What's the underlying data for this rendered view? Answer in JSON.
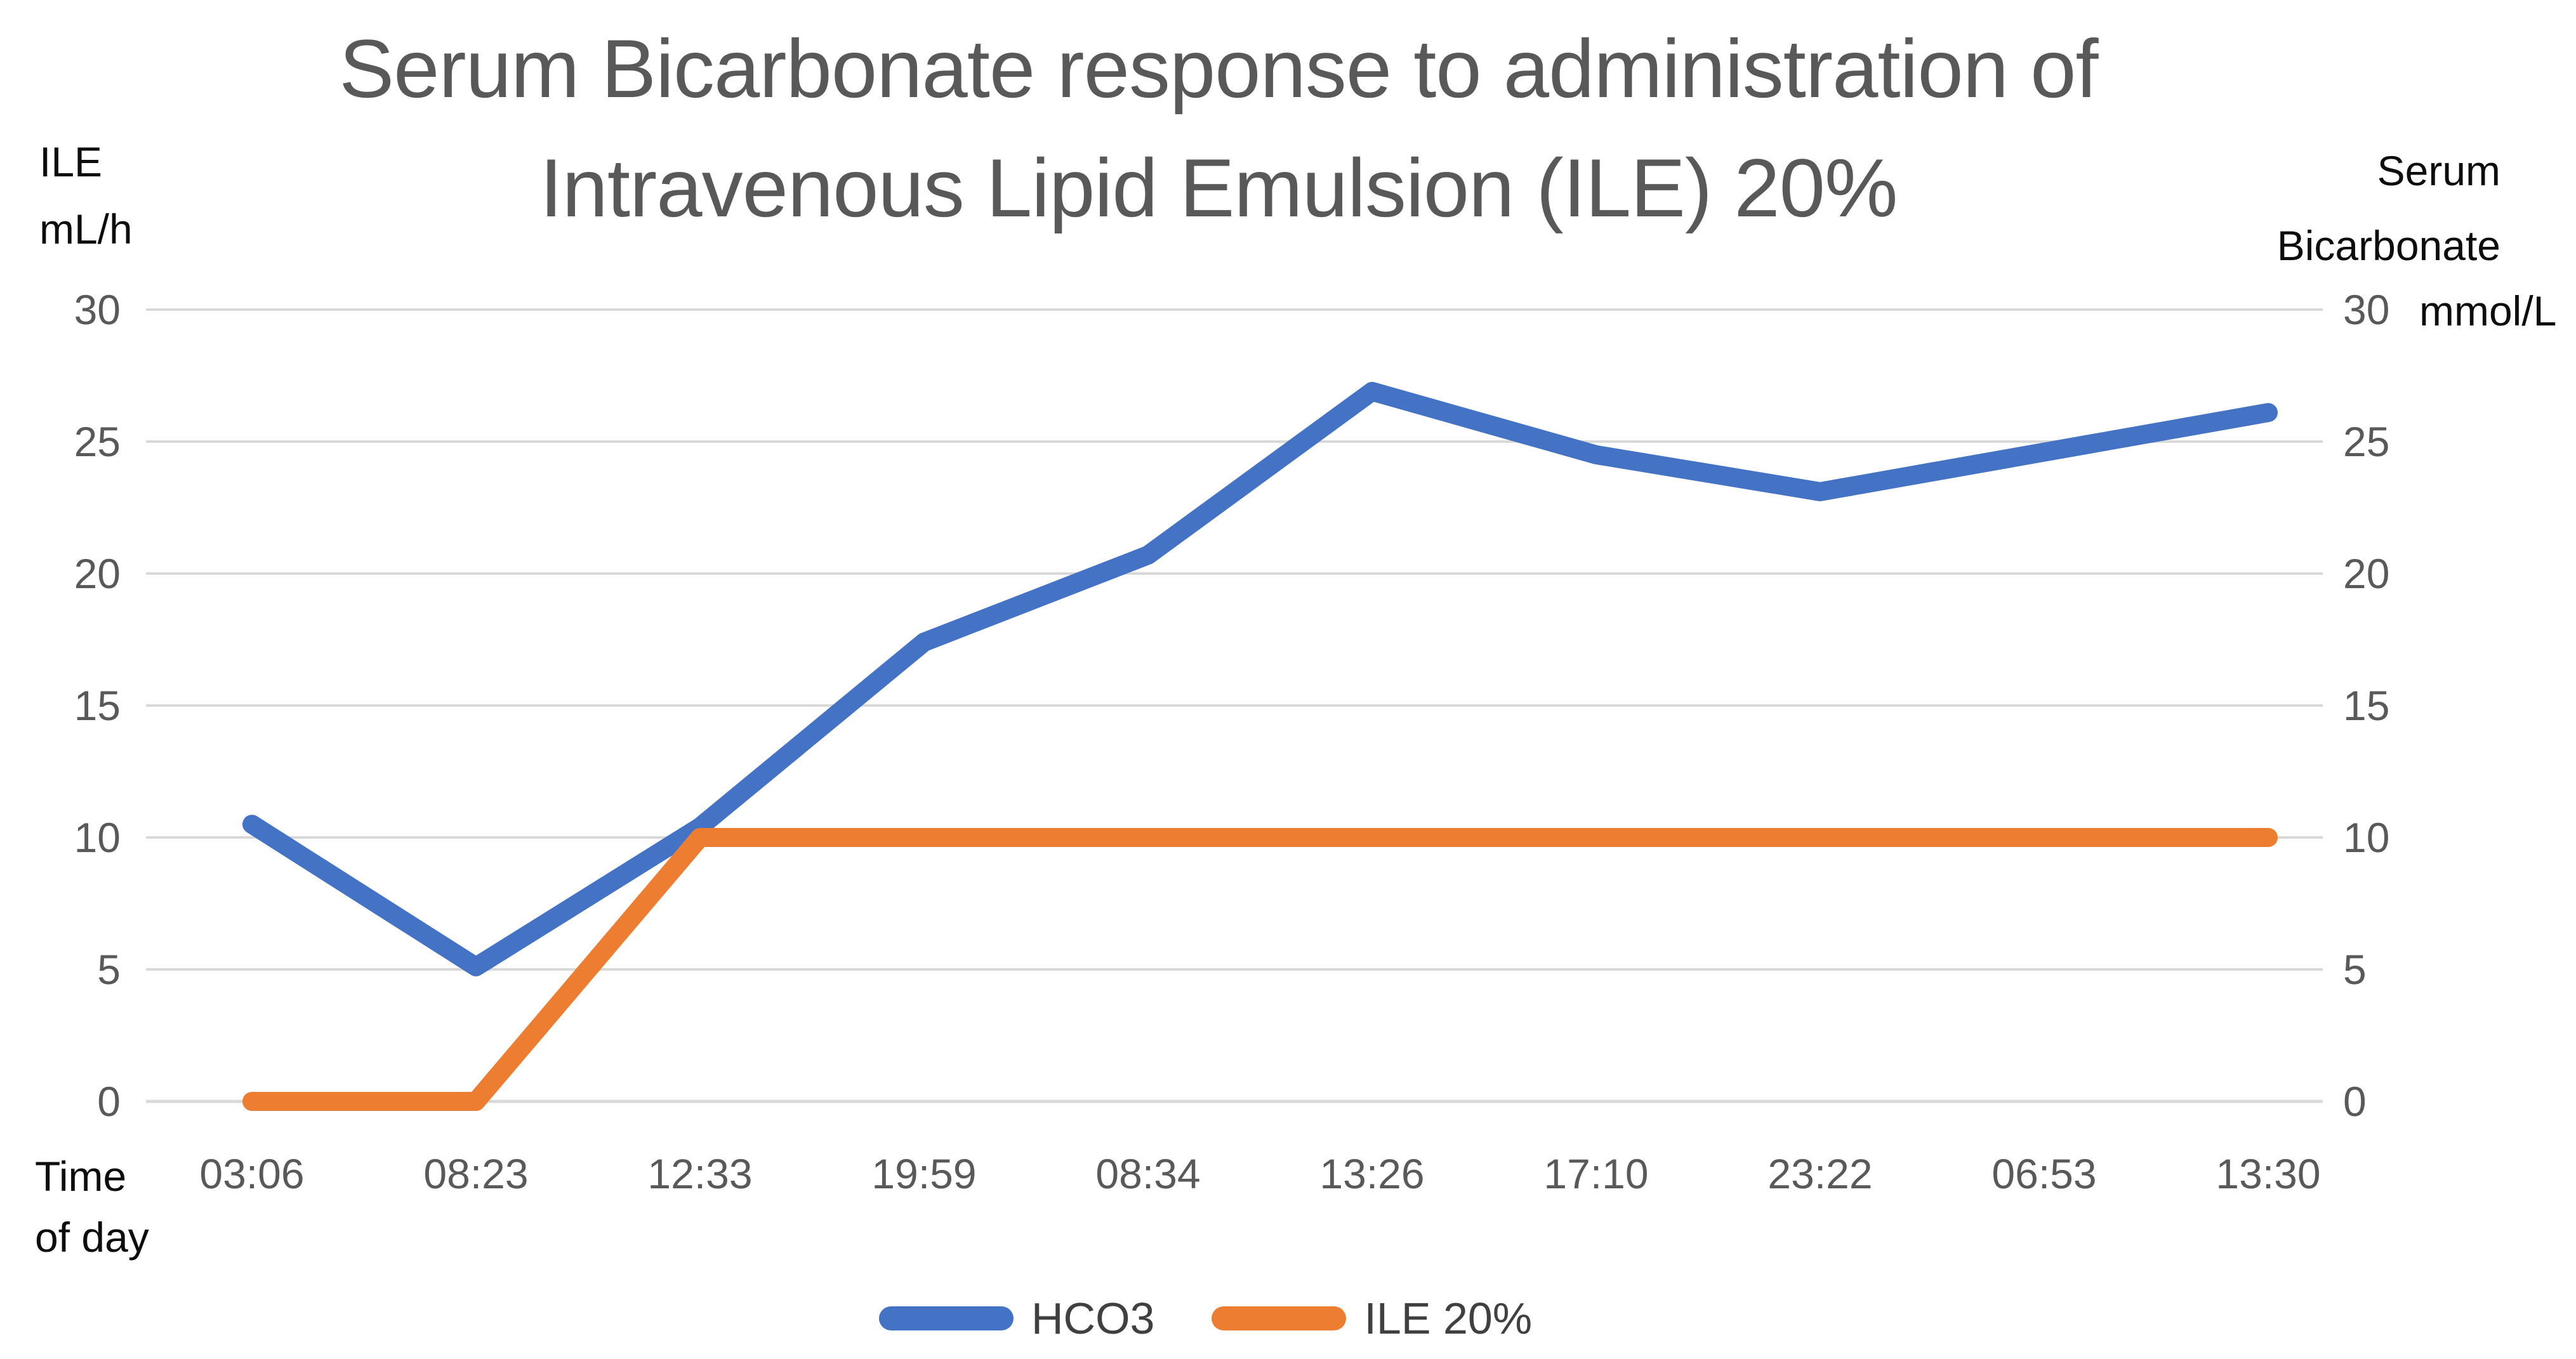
{
  "chart_data": {
    "type": "line",
    "title": "Serum Bicarbonate response to administration of Intravenous Lipid Emulsion (ILE) 20%",
    "title_lines": [
      "Serum Bicarbonate response to administration of",
      "Intravenous Lipid Emulsion (ILE) 20%"
    ],
    "categories": [
      "03:06",
      "08:23",
      "12:33",
      "19:59",
      "08:34",
      "13:26",
      "17:10",
      "23:22",
      "06:53",
      "13:30"
    ],
    "series": [
      {
        "name": "HCO3",
        "color": "#4472C4",
        "axis": "right",
        "values": [
          10.5,
          5.1,
          10.4,
          17.4,
          20.7,
          26.9,
          24.5,
          23.1,
          24.6,
          26.1
        ]
      },
      {
        "name": "ILE 20%",
        "color": "#ED7D31",
        "axis": "left",
        "values": [
          0,
          0,
          10,
          10,
          10,
          10,
          10,
          10,
          10,
          10
        ]
      }
    ],
    "ylim": [
      0,
      30
    ],
    "y_ticks": [
      30,
      25,
      20,
      15,
      10,
      5,
      0
    ],
    "left_axis_title_lines": [
      "ILE",
      "mL/h"
    ],
    "right_axis_title_lines": [
      "Serum",
      "Bicarbonate"
    ],
    "right_axis_unit": "mmol/L",
    "x_axis_title_lines": [
      "Time",
      "of day"
    ],
    "xlabel": "Time of day",
    "ylabel_left": "ILE mL/h",
    "ylabel_right": "Serum Bicarbonate mmol/L",
    "grid": "horizontal",
    "gridline_color": "#D9D9D9",
    "title_color": "#595959",
    "tick_color": "#595959",
    "legend_position": "bottom"
  }
}
